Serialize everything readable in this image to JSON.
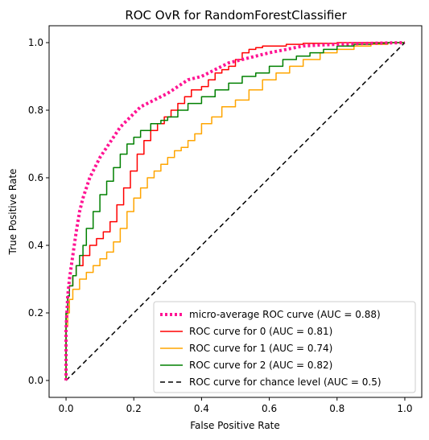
{
  "chart_data": {
    "type": "line",
    "title": "ROC OvR for RandomForestClassifier",
    "xlabel": "False Positive Rate",
    "ylabel": "True Positive Rate",
    "xlim": [
      -0.05,
      1.05
    ],
    "ylim": [
      -0.05,
      1.05
    ],
    "xticks": [
      "0.0",
      "0.2",
      "0.4",
      "0.6",
      "0.8",
      "1.0"
    ],
    "yticks": [
      "0.0",
      "0.2",
      "0.4",
      "0.6",
      "0.8",
      "1.0"
    ],
    "grid": false,
    "legend_position": "lower-right",
    "series": [
      {
        "name": "micro-average ROC curve (AUC = 0.88)",
        "color": "#ff1493",
        "style": "dotted",
        "x": [
          0.0,
          0.0,
          0.005,
          0.01,
          0.02,
          0.03,
          0.04,
          0.05,
          0.06,
          0.07,
          0.08,
          0.1,
          0.12,
          0.14,
          0.16,
          0.18,
          0.2,
          0.22,
          0.24,
          0.26,
          0.28,
          0.3,
          0.33,
          0.36,
          0.4,
          0.44,
          0.48,
          0.52,
          0.56,
          0.6,
          0.65,
          0.7,
          0.75,
          0.8,
          0.85,
          0.9,
          0.95,
          1.0
        ],
        "y": [
          0.0,
          0.15,
          0.25,
          0.3,
          0.37,
          0.44,
          0.5,
          0.54,
          0.57,
          0.6,
          0.62,
          0.66,
          0.69,
          0.72,
          0.75,
          0.77,
          0.79,
          0.81,
          0.82,
          0.83,
          0.84,
          0.85,
          0.87,
          0.89,
          0.9,
          0.92,
          0.94,
          0.95,
          0.96,
          0.97,
          0.98,
          0.99,
          0.993,
          0.995,
          0.997,
          0.998,
          0.999,
          1.0
        ]
      },
      {
        "name": "ROC curve for 0 (AUC = 0.81)",
        "color": "#ff0000",
        "style": "solid",
        "x": [
          0.0,
          0.0,
          0.005,
          0.01,
          0.02,
          0.03,
          0.05,
          0.07,
          0.09,
          0.11,
          0.13,
          0.15,
          0.17,
          0.19,
          0.21,
          0.23,
          0.25,
          0.27,
          0.29,
          0.31,
          0.33,
          0.35,
          0.37,
          0.4,
          0.42,
          0.44,
          0.46,
          0.48,
          0.5,
          0.52,
          0.54,
          0.56,
          0.58,
          0.6,
          0.65,
          0.7,
          0.8,
          0.9,
          1.0
        ],
        "y": [
          0.0,
          0.12,
          0.2,
          0.25,
          0.28,
          0.31,
          0.34,
          0.37,
          0.4,
          0.42,
          0.44,
          0.47,
          0.52,
          0.57,
          0.62,
          0.67,
          0.71,
          0.74,
          0.76,
          0.78,
          0.8,
          0.82,
          0.84,
          0.86,
          0.87,
          0.89,
          0.91,
          0.92,
          0.93,
          0.95,
          0.97,
          0.98,
          0.985,
          0.99,
          0.99,
          0.995,
          0.998,
          1.0,
          1.0
        ]
      },
      {
        "name": "ROC curve for 1 (AUC = 0.74)",
        "color": "#ffa500",
        "style": "solid",
        "x": [
          0.0,
          0.0,
          0.005,
          0.01,
          0.02,
          0.04,
          0.06,
          0.08,
          0.1,
          0.12,
          0.14,
          0.16,
          0.18,
          0.2,
          0.22,
          0.24,
          0.26,
          0.28,
          0.3,
          0.32,
          0.34,
          0.36,
          0.38,
          0.4,
          0.43,
          0.46,
          0.5,
          0.54,
          0.58,
          0.62,
          0.66,
          0.7,
          0.75,
          0.8,
          0.85,
          0.9,
          0.95,
          1.0
        ],
        "y": [
          0.0,
          0.1,
          0.16,
          0.2,
          0.24,
          0.27,
          0.3,
          0.32,
          0.34,
          0.36,
          0.38,
          0.41,
          0.45,
          0.5,
          0.54,
          0.57,
          0.6,
          0.62,
          0.64,
          0.66,
          0.68,
          0.69,
          0.71,
          0.73,
          0.76,
          0.78,
          0.81,
          0.83,
          0.86,
          0.89,
          0.91,
          0.93,
          0.95,
          0.97,
          0.98,
          0.99,
          0.995,
          1.0
        ]
      },
      {
        "name": "ROC curve for 2 (AUC = 0.82)",
        "color": "#008000",
        "style": "solid",
        "x": [
          0.0,
          0.0,
          0.005,
          0.01,
          0.02,
          0.03,
          0.04,
          0.05,
          0.06,
          0.08,
          0.1,
          0.12,
          0.14,
          0.16,
          0.18,
          0.2,
          0.22,
          0.25,
          0.28,
          0.3,
          0.33,
          0.36,
          0.4,
          0.44,
          0.48,
          0.52,
          0.56,
          0.6,
          0.64,
          0.68,
          0.72,
          0.76,
          0.8,
          0.85,
          0.9,
          0.95,
          1.0
        ],
        "y": [
          0.0,
          0.14,
          0.2,
          0.25,
          0.28,
          0.31,
          0.34,
          0.37,
          0.4,
          0.45,
          0.5,
          0.55,
          0.59,
          0.63,
          0.67,
          0.7,
          0.72,
          0.74,
          0.76,
          0.77,
          0.78,
          0.8,
          0.82,
          0.84,
          0.86,
          0.88,
          0.9,
          0.91,
          0.93,
          0.95,
          0.96,
          0.97,
          0.98,
          0.99,
          0.995,
          0.998,
          1.0
        ]
      },
      {
        "name": "ROC curve for chance level (AUC = 0.5)",
        "color": "#000000",
        "style": "dashed",
        "x": [
          0.0,
          1.0
        ],
        "y": [
          0.0,
          1.0
        ]
      }
    ]
  }
}
